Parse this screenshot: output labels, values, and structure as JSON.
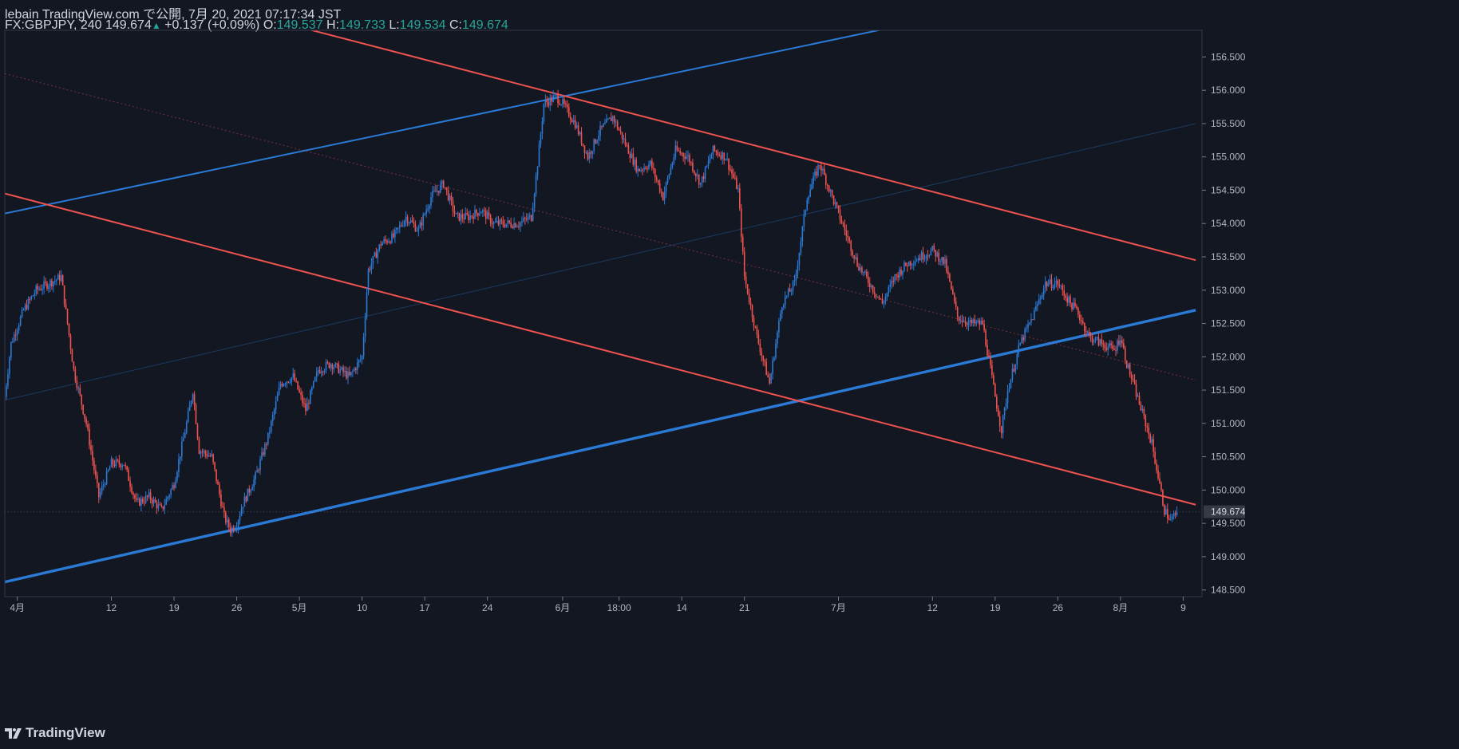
{
  "header": {
    "publish_line": "lebain TradingView.com で公開, 7月 20, 2021 07:17:34 JST",
    "symbol": "FX:GBPJPY, 240",
    "last": "149.674",
    "change": "+0.137 (+0.09%)",
    "o_label": "O:",
    "o_value": "149.537",
    "h_label": "H:",
    "h_value": "149.733",
    "l_label": "L:",
    "l_value": "149.534",
    "c_label": "C:",
    "c_value": "149.674"
  },
  "footer": {
    "brand": "TradingView"
  },
  "colors": {
    "background": "#131722",
    "up": "#2a7ad6",
    "down": "#ef5350",
    "channel_up": "#2a7ad6",
    "channel_down": "#ef5350",
    "last_price_bg": "#363a45"
  },
  "chart_data": {
    "type": "candlestick",
    "symbol": "FX:GBPJPY",
    "interval": "240",
    "ylim": [
      148.4,
      156.9
    ],
    "xlim": [
      0,
      191
    ],
    "y_ticks": [
      "148.500",
      "149.000",
      "149.500",
      "150.000",
      "150.500",
      "151.000",
      "151.500",
      "152.000",
      "152.500",
      "153.000",
      "153.500",
      "154.000",
      "154.500",
      "155.000",
      "155.500",
      "156.000",
      "156.500"
    ],
    "x_ticks": [
      {
        "i": 2,
        "label": "4月"
      },
      {
        "i": 17,
        "label": "12"
      },
      {
        "i": 27,
        "label": "19"
      },
      {
        "i": 37,
        "label": "26"
      },
      {
        "i": 47,
        "label": "5月"
      },
      {
        "i": 57,
        "label": "10"
      },
      {
        "i": 67,
        "label": "17"
      },
      {
        "i": 77,
        "label": "24"
      },
      {
        "i": 89,
        "label": "6月"
      },
      {
        "i": 98,
        "label": "18:00"
      },
      {
        "i": 108,
        "label": "14"
      },
      {
        "i": 118,
        "label": "21"
      },
      {
        "i": 133,
        "label": "7月"
      },
      {
        "i": 148,
        "label": "12"
      },
      {
        "i": 158,
        "label": "19"
      },
      {
        "i": 168,
        "label": "26"
      },
      {
        "i": 178,
        "label": "8月"
      },
      {
        "i": 188,
        "label": "9"
      }
    ],
    "last_price": "149.674",
    "close_path": [
      [
        0,
        151.4
      ],
      [
        1,
        152.2
      ],
      [
        3,
        152.7
      ],
      [
        5,
        153.0
      ],
      [
        7,
        153.1
      ],
      [
        9,
        153.2
      ],
      [
        10,
        152.5
      ],
      [
        11,
        151.8
      ],
      [
        13,
        151.0
      ],
      [
        15,
        149.9
      ],
      [
        17,
        150.4
      ],
      [
        19,
        150.4
      ],
      [
        21,
        149.8
      ],
      [
        23,
        149.9
      ],
      [
        25,
        149.7
      ],
      [
        27,
        150.1
      ],
      [
        29,
        151.0
      ],
      [
        30,
        151.5
      ],
      [
        31,
        150.6
      ],
      [
        33,
        150.5
      ],
      [
        35,
        149.6
      ],
      [
        36,
        149.4
      ],
      [
        37,
        149.5
      ],
      [
        38,
        149.8
      ],
      [
        40,
        150.2
      ],
      [
        42,
        150.8
      ],
      [
        44,
        151.6
      ],
      [
        46,
        151.7
      ],
      [
        48,
        151.2
      ],
      [
        50,
        151.8
      ],
      [
        52,
        151.9
      ],
      [
        55,
        151.7
      ],
      [
        57,
        152.0
      ],
      [
        58,
        153.3
      ],
      [
        60,
        153.7
      ],
      [
        62,
        153.8
      ],
      [
        64,
        154.1
      ],
      [
        66,
        153.9
      ],
      [
        68,
        154.4
      ],
      [
        70,
        154.6
      ],
      [
        72,
        154.1
      ],
      [
        74,
        154.1
      ],
      [
        76,
        154.2
      ],
      [
        78,
        154.0
      ],
      [
        80,
        154.0
      ],
      [
        82,
        154.0
      ],
      [
        84,
        154.1
      ],
      [
        85,
        154.9
      ],
      [
        86,
        155.8
      ],
      [
        88,
        155.9
      ],
      [
        89,
        155.8
      ],
      [
        91,
        155.5
      ],
      [
        93,
        155.0
      ],
      [
        95,
        155.4
      ],
      [
        97,
        155.6
      ],
      [
        99,
        155.2
      ],
      [
        101,
        154.8
      ],
      [
        103,
        154.9
      ],
      [
        105,
        154.4
      ],
      [
        107,
        155.1
      ],
      [
        109,
        155.0
      ],
      [
        111,
        154.6
      ],
      [
        113,
        155.1
      ],
      [
        115,
        155.0
      ],
      [
        117,
        154.5
      ],
      [
        118,
        153.2
      ],
      [
        120,
        152.3
      ],
      [
        122,
        151.6
      ],
      [
        124,
        152.8
      ],
      [
        126,
        153.1
      ],
      [
        128,
        154.4
      ],
      [
        130,
        154.9
      ],
      [
        132,
        154.4
      ],
      [
        134,
        153.9
      ],
      [
        136,
        153.4
      ],
      [
        138,
        153.1
      ],
      [
        140,
        152.8
      ],
      [
        142,
        153.2
      ],
      [
        144,
        153.4
      ],
      [
        146,
        153.5
      ],
      [
        148,
        153.6
      ],
      [
        150,
        153.4
      ],
      [
        152,
        152.6
      ],
      [
        154,
        152.5
      ],
      [
        156,
        152.5
      ],
      [
        158,
        151.4
      ],
      [
        159,
        150.9
      ],
      [
        160,
        151.5
      ],
      [
        162,
        152.2
      ],
      [
        164,
        152.6
      ],
      [
        166,
        153.1
      ],
      [
        168,
        153.1
      ],
      [
        170,
        152.8
      ],
      [
        171,
        152.7
      ],
      [
        173,
        152.3
      ],
      [
        175,
        152.2
      ],
      [
        177,
        152.1
      ],
      [
        178,
        152.3
      ],
      [
        179,
        151.9
      ],
      [
        181,
        151.3
      ],
      [
        183,
        150.7
      ],
      [
        185,
        149.7
      ],
      [
        186,
        149.54
      ],
      [
        187,
        149.674
      ]
    ],
    "trend_lines": [
      {
        "name": "",
        "color": "#2a7ad6",
        "width": 2,
        "p1": [
          0,
          154.15
        ],
        "p2": [
          190,
          157.9
        ]
      },
      {
        "name": "",
        "color": "#2a7ad6",
        "width": 3.4,
        "p1": [
          0,
          148.62
        ],
        "p2": [
          190,
          152.7
        ]
      },
      {
        "name": "",
        "color": "#2a7ad6",
        "width": 1,
        "opacity": 0.35,
        "p1": [
          0,
          151.35
        ],
        "p2": [
          190,
          155.5
        ]
      },
      {
        "name": "",
        "color": "#ef5350",
        "width": 2,
        "p1": [
          47,
          156.95
        ],
        "p2": [
          190,
          153.45
        ]
      },
      {
        "name": "",
        "color": "#ef5350",
        "width": 2,
        "p1": [
          0,
          154.45
        ],
        "p2": [
          190,
          149.78
        ]
      },
      {
        "name": "",
        "color": "#ef5350",
        "width": 1,
        "opacity": 0.45,
        "dash": "2,3",
        "p1": [
          0,
          156.25
        ],
        "p2": [
          190,
          151.65
        ]
      }
    ]
  }
}
